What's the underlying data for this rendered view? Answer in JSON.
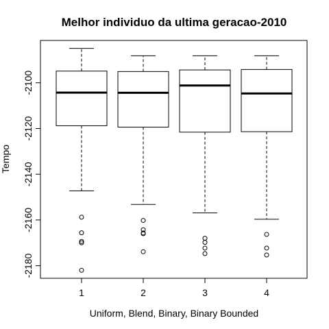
{
  "chart_data": {
    "type": "box",
    "title": "Melhor individuo da ultima geracao-2010",
    "xlabel": "Uniform, Blend, Binary, Binary Bounded",
    "ylabel": "Tempo",
    "categories": [
      "1",
      "2",
      "3",
      "4"
    ],
    "yticks": [
      -2100,
      -2120,
      -2140,
      -2160,
      -2180
    ],
    "ylim": [
      -2185.5,
      -2081.5
    ],
    "boxes": [
      {
        "whisker_low": -2147.3,
        "q1": -2118.8,
        "median": -2104.3,
        "q3": -2094.9,
        "whisker_high": -2085.0,
        "outliers": [
          -2158.8,
          -2165.6,
          -2169.4,
          -2170.0,
          -2182.0
        ]
      },
      {
        "whisker_low": -2153.2,
        "q1": -2119.4,
        "median": -2104.4,
        "q3": -2095.1,
        "whisker_high": -2088.2,
        "outliers": [
          -2160.2,
          -2164.3,
          -2165.7,
          -2166.0,
          -2173.9
        ]
      },
      {
        "whisker_low": -2156.9,
        "q1": -2121.6,
        "median": -2101.2,
        "q3": -2094.4,
        "whisker_high": -2088.2,
        "outliers": [
          -2168.0,
          -2169.8,
          -2172.3,
          -2174.7
        ]
      },
      {
        "whisker_low": -2159.7,
        "q1": -2121.4,
        "median": -2104.7,
        "q3": -2094.2,
        "whisker_high": -2088.2,
        "outliers": [
          -2166.3,
          -2172.3,
          -2175.3
        ]
      }
    ]
  }
}
